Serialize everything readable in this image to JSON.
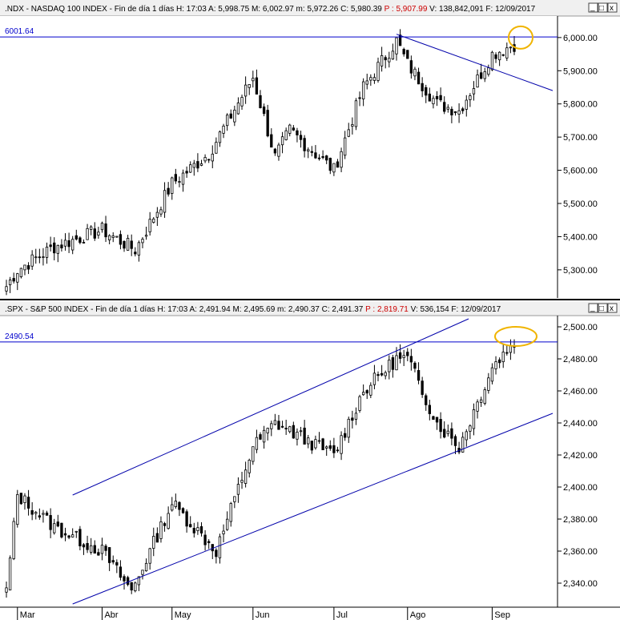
{
  "panels": [
    {
      "symbol": ".NDX",
      "header_parts": [
        {
          "text": ".NDX - NASDAQ 100 INDEX - Fin de día 1 días",
          "color": "#000000"
        },
        {
          "text": "H: 17:03",
          "color": "#000000"
        },
        {
          "text": "A: 5,998.75",
          "color": "#000000"
        },
        {
          "text": "M: 6,002.97",
          "color": "#000000"
        },
        {
          "text": "m: 5,972.26",
          "color": "#000000"
        },
        {
          "text": "C: 5,980.39",
          "color": "#000000"
        },
        {
          "text": "P : 5,907.99",
          "color": "#cc0000"
        },
        {
          "text": "V: 138,842,091",
          "color": "#000000"
        },
        {
          "text": "F: 12/09/2017",
          "color": "#000000"
        }
      ],
      "level_label": "6001.64",
      "level_value": 6001.64,
      "y_ticks": [
        "6,000.00",
        "5,900.00",
        "5,800.00",
        "5,700.00",
        "5,600.00",
        "5,500.00",
        "5,400.00",
        "5,300.00"
      ],
      "y_tick_values": [
        6000,
        5900,
        5800,
        5700,
        5600,
        5500,
        5400,
        5300
      ]
    },
    {
      "symbol": ".SPX",
      "header_parts": [
        {
          "text": ".SPX - S&P 500 INDEX - Fin de día 1 días",
          "color": "#000000"
        },
        {
          "text": "H: 17:03",
          "color": "#000000"
        },
        {
          "text": "A: 2,491.94",
          "color": "#000000"
        },
        {
          "text": "M: 2,495.69",
          "color": "#000000"
        },
        {
          "text": "m: 2,490.37",
          "color": "#000000"
        },
        {
          "text": "C: 2,491.37",
          "color": "#000000"
        },
        {
          "text": "P : 2,819.71",
          "color": "#cc0000"
        },
        {
          "text": "V: 536,154",
          "color": "#000000"
        },
        {
          "text": "F: 12/09/2017",
          "color": "#000000"
        }
      ],
      "level_label": "2490.54",
      "level_value": 2490.54,
      "y_ticks": [
        "2,500.00",
        "2,480.00",
        "2,460.00",
        "2,440.00",
        "2,420.00",
        "2,400.00",
        "2,380.00",
        "2,360.00",
        "2,340.00"
      ],
      "y_tick_values": [
        2500,
        2480,
        2460,
        2440,
        2420,
        2400,
        2380,
        2360,
        2340
      ]
    }
  ],
  "x_labels": [
    "Mar",
    "Abr",
    "May",
    "Jun",
    "Jul",
    "Ago",
    "Sep"
  ],
  "window_buttons": {
    "minimize": "_",
    "maximize": "□",
    "close": "x"
  },
  "colors": {
    "up": "#ffffff",
    "down": "#000000",
    "line": "#0000aa",
    "level": "#0000cc",
    "highlight": "#f0b400",
    "text_alt": "#cc0000"
  },
  "chart_data": [
    {
      "type": "candlestick",
      "title": ".NDX - NASDAQ 100 INDEX",
      "ylim": [
        5220,
        6060
      ],
      "x": [
        "2017-02-24",
        "2017-03-01",
        "2017-03-15",
        "2017-04-03",
        "2017-04-17",
        "2017-05-01",
        "2017-05-15",
        "2017-06-01",
        "2017-06-09",
        "2017-06-15",
        "2017-07-03",
        "2017-07-14",
        "2017-07-27",
        "2017-08-01",
        "2017-08-11",
        "2017-08-21",
        "2017-09-01",
        "2017-09-12"
      ],
      "close": [
        5250,
        5300,
        5370,
        5420,
        5360,
        5560,
        5650,
        5880,
        5640,
        5720,
        5600,
        5850,
        5990,
        5920,
        5800,
        5780,
        5950,
        5980
      ]
    },
    {
      "type": "candlestick",
      "title": ".SPX - S&P 500 INDEX",
      "ylim": [
        2325,
        2505
      ],
      "x": [
        "2017-02-24",
        "2017-03-01",
        "2017-03-15",
        "2017-04-03",
        "2017-04-13",
        "2017-05-01",
        "2017-05-17",
        "2017-06-01",
        "2017-06-09",
        "2017-06-15",
        "2017-07-03",
        "2017-07-14",
        "2017-07-27",
        "2017-08-01",
        "2017-08-11",
        "2017-08-21",
        "2017-09-01",
        "2017-09-12"
      ],
      "close": [
        2335,
        2395,
        2375,
        2360,
        2335,
        2390,
        2360,
        2425,
        2440,
        2435,
        2420,
        2460,
        2480,
        2480,
        2440,
        2425,
        2475,
        2491
      ]
    }
  ]
}
